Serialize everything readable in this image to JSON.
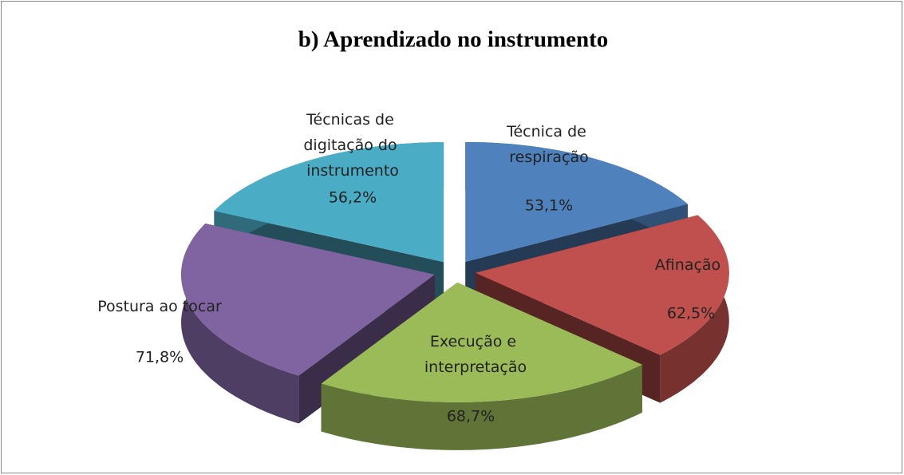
{
  "chart_data": {
    "type": "pie3d",
    "title": "b) Aprendizado no instrumento",
    "categories": [
      "Técnica de respiração",
      "Afinação",
      "Execução e interpretação",
      "Postura ao tocar",
      "Técnicas de digitação do instrumento"
    ],
    "values": [
      53.1,
      62.5,
      68.7,
      71.8,
      56.2
    ],
    "value_labels": [
      "53,1%",
      "62,5%",
      "68,7%",
      "71,8%",
      "56,2%"
    ],
    "colors": [
      "#4f81bd",
      "#c0504d",
      "#9bbb59",
      "#8064a2",
      "#4bacc6"
    ]
  }
}
